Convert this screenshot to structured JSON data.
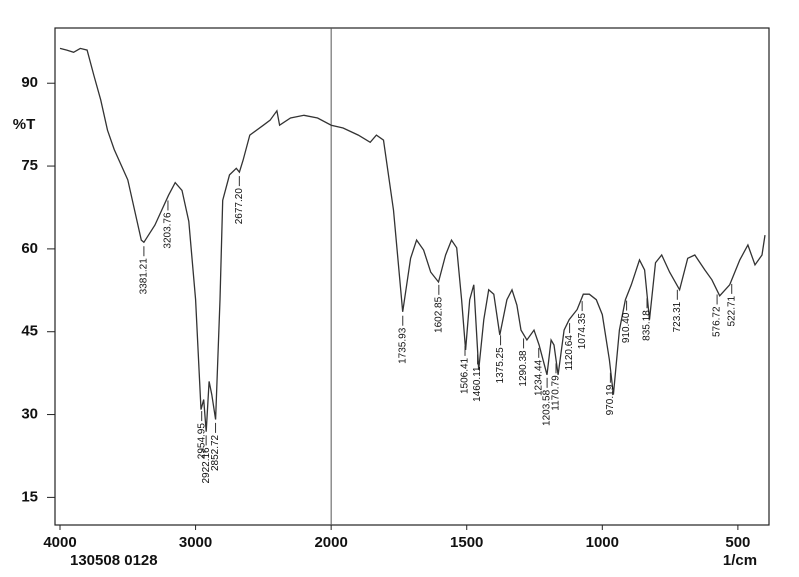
{
  "chart_data": {
    "type": "line",
    "ylabel": "%T",
    "xlabel": "1/cm",
    "caption": "130508 0128",
    "xlim": [
      4000,
      400
    ],
    "ylim": [
      10,
      100
    ],
    "xticks": [
      4000,
      3000,
      2000,
      1500,
      1000,
      500
    ],
    "yticks": [
      15,
      30,
      45,
      60,
      75,
      90
    ],
    "series": [
      {
        "color": "#333333",
        "x": [
          4000,
          3950,
          3900,
          3850,
          3800,
          3750,
          3700,
          3650,
          3600,
          3500,
          3400,
          3381,
          3300,
          3200,
          3150,
          3100,
          3050,
          3000,
          2960,
          2940,
          2922,
          2900,
          2880,
          2852,
          2820,
          2800,
          2750,
          2700,
          2677,
          2650,
          2600,
          2500,
          2450,
          2400,
          2380,
          2300,
          2200,
          2100,
          2000,
          1956,
          1900,
          1856,
          1833,
          1807,
          1770,
          1736,
          1707,
          1685,
          1659,
          1633,
          1604,
          1578,
          1556,
          1537,
          1519,
          1504,
          1489,
          1474,
          1456,
          1437,
          1419,
          1400,
          1378,
          1352,
          1333,
          1315,
          1300,
          1278,
          1252,
          1233,
          1204,
          1189,
          1178,
          1163,
          1141,
          1122,
          1093,
          1070,
          1048,
          1022,
          1000,
          974,
          959,
          937,
          915,
          893,
          863,
          844,
          826,
          804,
          781,
          752,
          715,
          685,
          659,
          622,
          596,
          567,
          530,
          493,
          463,
          437,
          411,
          400
        ],
        "values": [
          96.3,
          96,
          95.6,
          96.3,
          96,
          91.4,
          87,
          81.5,
          78,
          72.5,
          61.6,
          61.2,
          64.3,
          69.7,
          72,
          70.6,
          65,
          50.8,
          30.9,
          32.7,
          26.9,
          36,
          33.6,
          29.1,
          50.8,
          68.8,
          73.4,
          74.6,
          73.9,
          76,
          80.6,
          82.4,
          83.3,
          85,
          82.4,
          83.7,
          84.2,
          83.7,
          82.4,
          81.9,
          80.6,
          79.3,
          80.6,
          79.7,
          67,
          48.6,
          58.3,
          61.6,
          59.8,
          55.8,
          54,
          58.9,
          61.6,
          60.2,
          50.8,
          41.7,
          50.8,
          53.5,
          38.1,
          47.2,
          52.6,
          51.8,
          44.4,
          50.8,
          52.6,
          49.8,
          45.3,
          43.5,
          45.3,
          42.6,
          37.2,
          43.5,
          42.6,
          37.2,
          45.3,
          47.2,
          49,
          51.8,
          51.8,
          50.8,
          48.1,
          39.9,
          33.6,
          45.3,
          50.8,
          53.5,
          58,
          56.2,
          47.2,
          57.5,
          58.9,
          55.8,
          52.6,
          58.3,
          58.9,
          56.2,
          54.4,
          51.5,
          53.5,
          58,
          60.7,
          57.1,
          58.9,
          62.5
        ]
      }
    ],
    "peaks": [
      {
        "x": 3381.21,
        "label": "3381.21"
      },
      {
        "x": 3203.76,
        "label": "3203.76"
      },
      {
        "x": 2954.95,
        "label": "2954.95"
      },
      {
        "x": 2922.16,
        "label": "2922.16"
      },
      {
        "x": 2852.72,
        "label": "2852.72"
      },
      {
        "x": 2677.2,
        "label": "2677.20"
      },
      {
        "x": 1735.93,
        "label": "1735.93"
      },
      {
        "x": 1602.85,
        "label": "1602.85"
      },
      {
        "x": 1506.41,
        "label": "1506.41"
      },
      {
        "x": 1460.11,
        "label": "1460.11"
      },
      {
        "x": 1375.25,
        "label": "1375.25"
      },
      {
        "x": 1290.38,
        "label": "1290.38"
      },
      {
        "x": 1234.44,
        "label": "1234.44"
      },
      {
        "x": 1203.58,
        "label": "1203.58"
      },
      {
        "x": 1170.79,
        "label": "1170.79"
      },
      {
        "x": 1120.64,
        "label": "1120.64"
      },
      {
        "x": 1074.35,
        "label": "1074.35"
      },
      {
        "x": 970.19,
        "label": "970.19"
      },
      {
        "x": 910.4,
        "label": "910.40"
      },
      {
        "x": 835.18,
        "label": "835.18"
      },
      {
        "x": 723.31,
        "label": "723.31"
      },
      {
        "x": 576.72,
        "label": "576.72"
      },
      {
        "x": 522.71,
        "label": "522.71"
      }
    ]
  }
}
